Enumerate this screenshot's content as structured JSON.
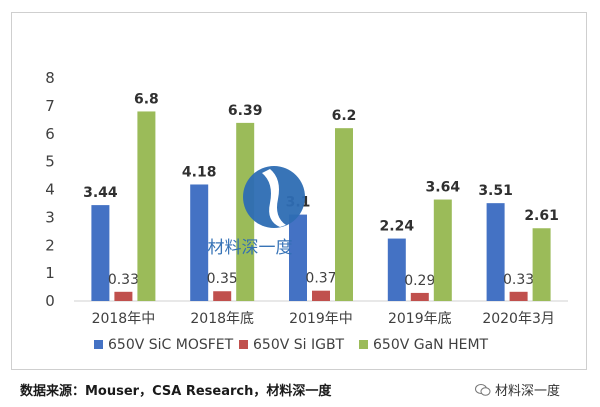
{
  "chart_data": {
    "type": "bar",
    "categories": [
      "2018年中",
      "2018年底",
      "2019年中",
      "2019年底",
      "2020年3月"
    ],
    "series": [
      {
        "name": "650V SiC MOSFET",
        "color": "#4472C4",
        "values": [
          3.44,
          4.18,
          3.1,
          2.24,
          3.51
        ]
      },
      {
        "name": "650V Si IGBT",
        "color": "#C0504D",
        "values": [
          0.33,
          0.35,
          0.37,
          0.29,
          0.33
        ]
      },
      {
        "name": "650V GaN HEMT",
        "color": "#9BBB59",
        "values": [
          6.8,
          6.39,
          6.2,
          3.64,
          2.61
        ]
      }
    ],
    "ylim": [
      0,
      8
    ],
    "yticks": [
      0,
      1,
      2,
      3,
      4,
      5,
      6,
      7,
      8
    ],
    "legend_position": "bottom",
    "grid": false
  },
  "watermark": {
    "text": "材料深一度",
    "color": "#2E6DB4"
  },
  "source_text": "数据来源：Mouser，CSA Research，材料深一度",
  "badge_text": "材料深一度"
}
